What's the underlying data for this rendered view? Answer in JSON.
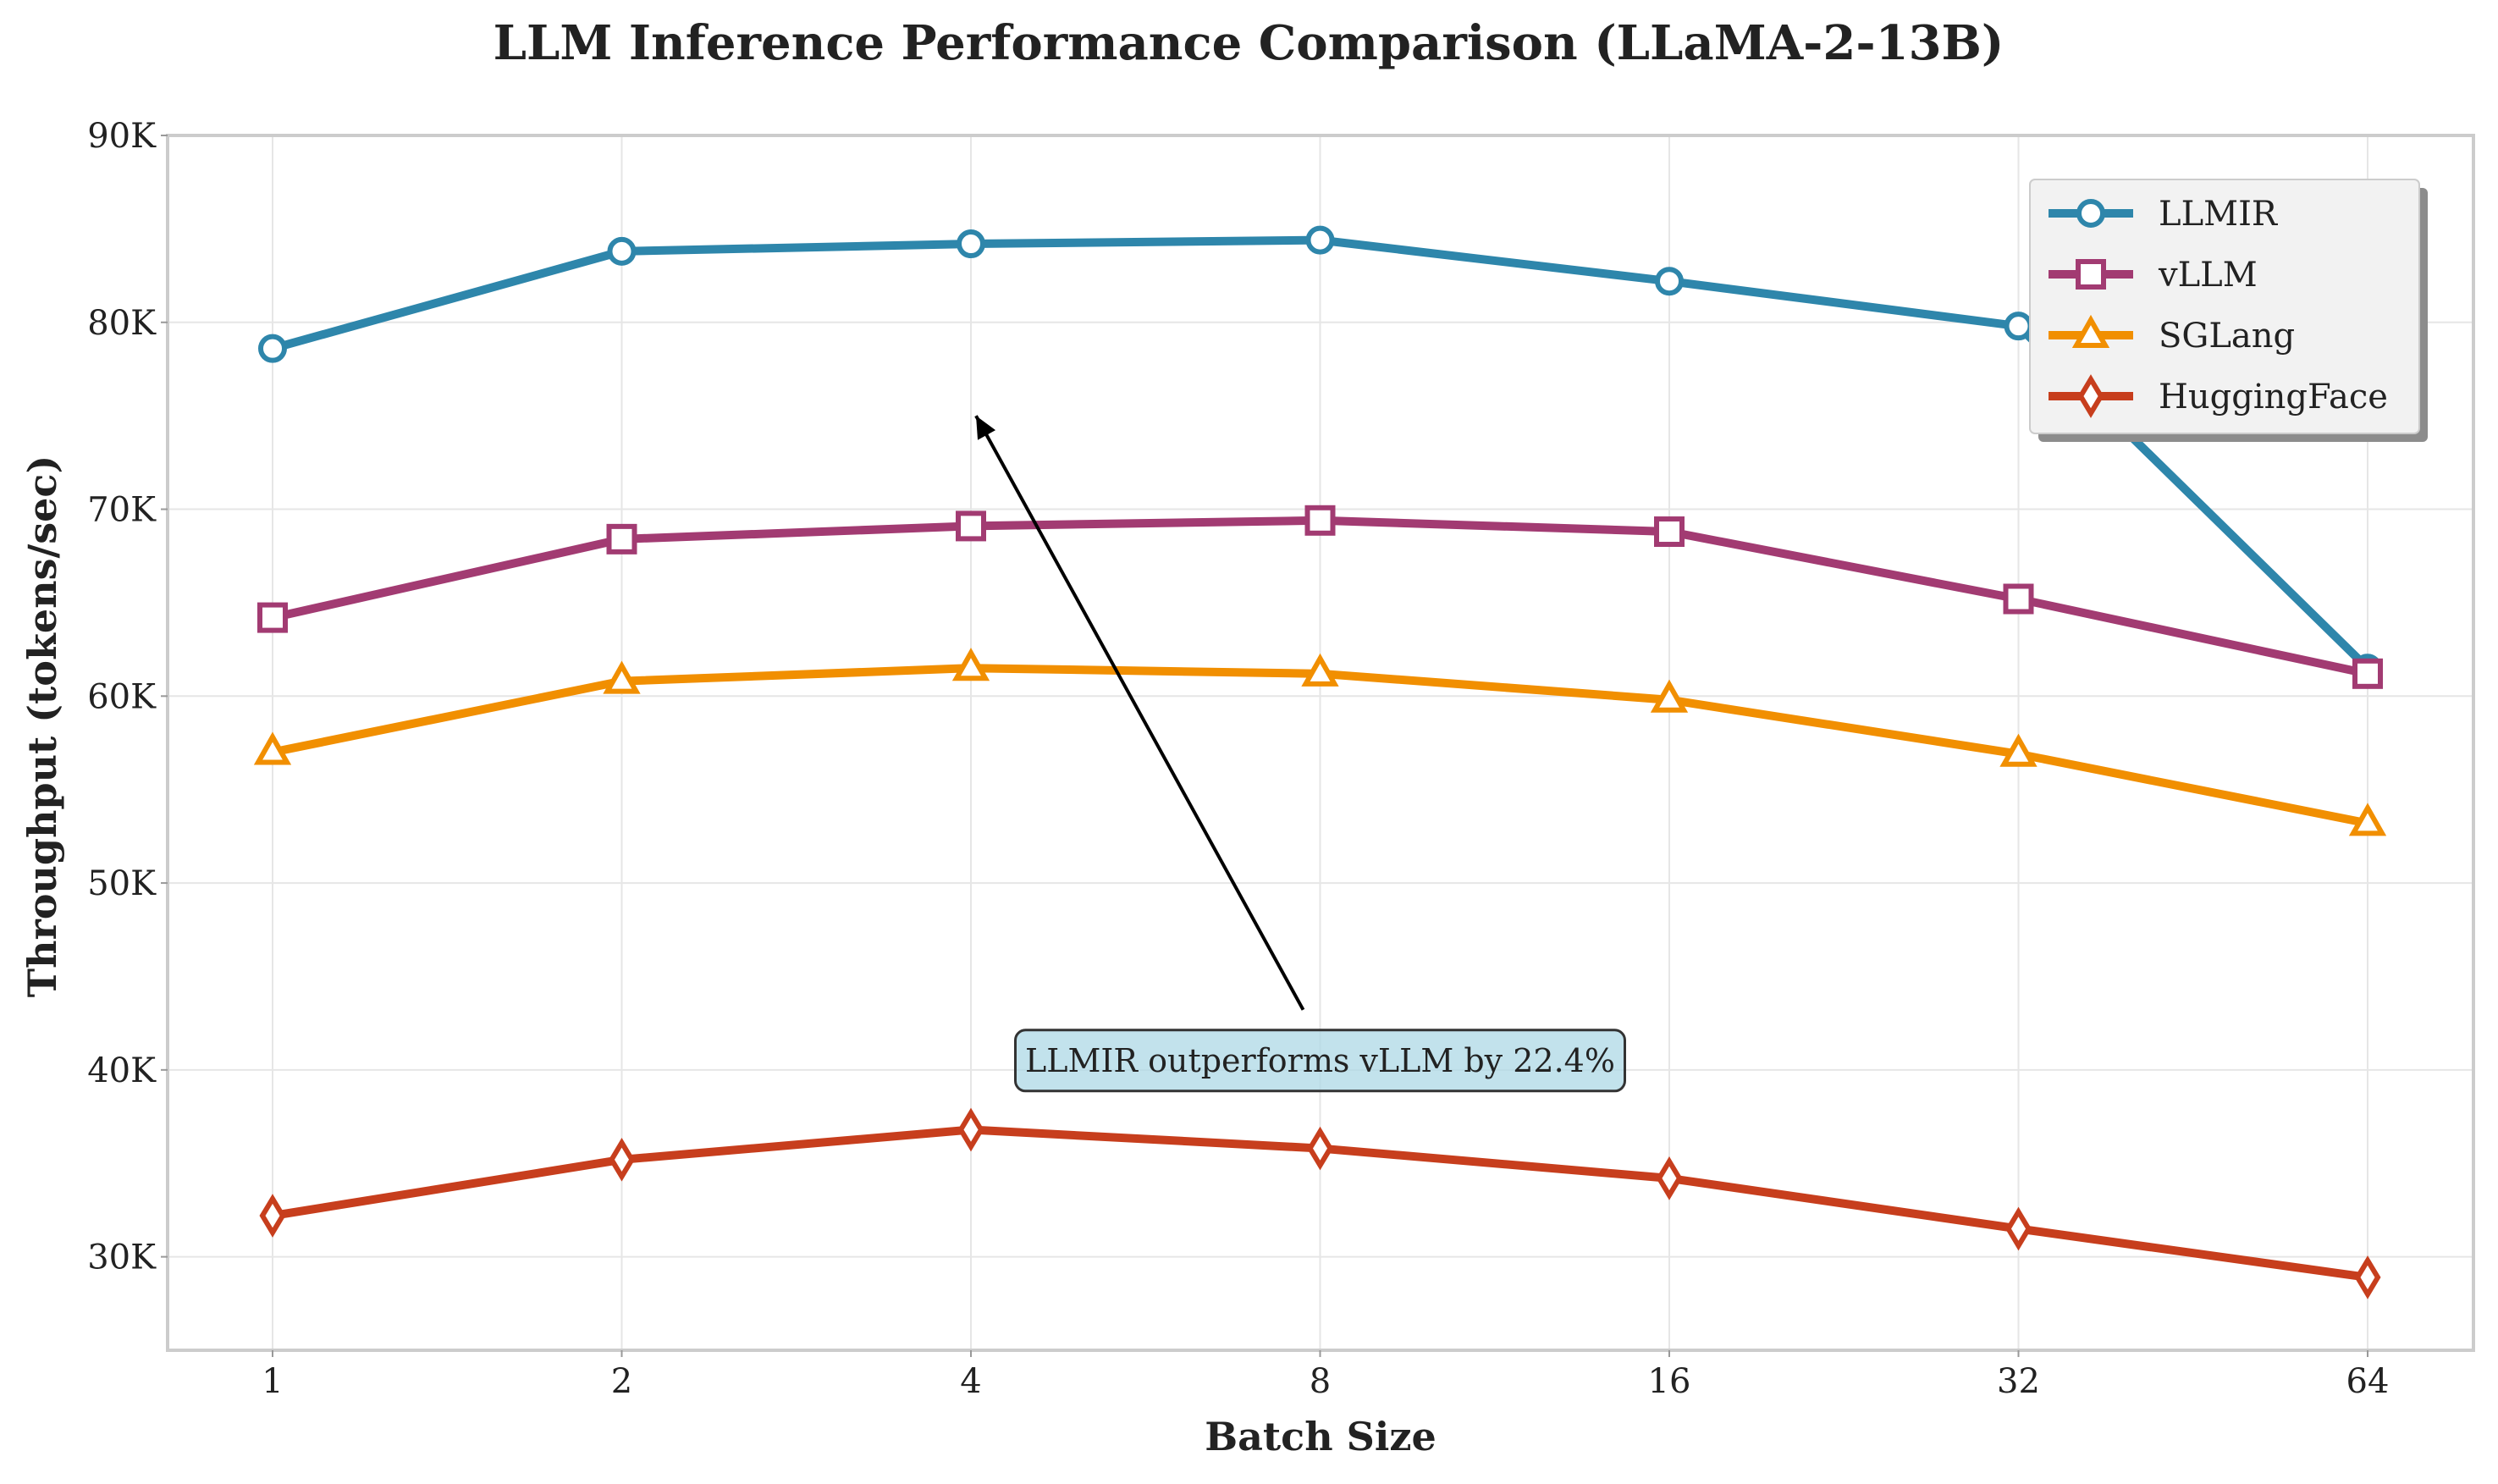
{
  "chart_data": {
    "type": "line",
    "title": "LLM Inference Performance Comparison (LLaMA-2-13B)",
    "xlabel": "Batch Size",
    "ylabel": "Throughput (tokens/sec)",
    "categories": [
      "1",
      "2",
      "4",
      "8",
      "16",
      "32",
      "64"
    ],
    "ylim": [
      25000,
      90000
    ],
    "yticks": [
      30000,
      40000,
      50000,
      60000,
      70000,
      80000,
      90000
    ],
    "ytick_labels": [
      "30K",
      "40K",
      "50K",
      "60K",
      "70K",
      "80K",
      "90K"
    ],
    "grid": true,
    "legend_position": "top-right",
    "series": [
      {
        "name": "LLMIR",
        "color": "#2e86ab",
        "marker": "circle",
        "values": [
          78600,
          83800,
          84200,
          84400,
          82200,
          79800,
          61500
        ]
      },
      {
        "name": "vLLM",
        "color": "#a23b72",
        "marker": "square",
        "values": [
          64200,
          68400,
          69100,
          69400,
          68800,
          65200,
          61200
        ]
      },
      {
        "name": "SGLang",
        "color": "#f18f01",
        "marker": "triangle",
        "values": [
          57000,
          60800,
          61500,
          61200,
          59800,
          56900,
          53200
        ]
      },
      {
        "name": "HuggingFace",
        "color": "#c73e1d",
        "marker": "diamond",
        "values": [
          32200,
          35200,
          36800,
          35800,
          34200,
          31500,
          28900
        ]
      }
    ],
    "annotation": {
      "text": "LLMIR outperforms vLLM by 22.4%",
      "arrow_target": {
        "x": "4",
        "y": 75000
      },
      "text_anchor": {
        "x": "8",
        "y": 40500
      },
      "box_color": "#add8e6"
    }
  }
}
